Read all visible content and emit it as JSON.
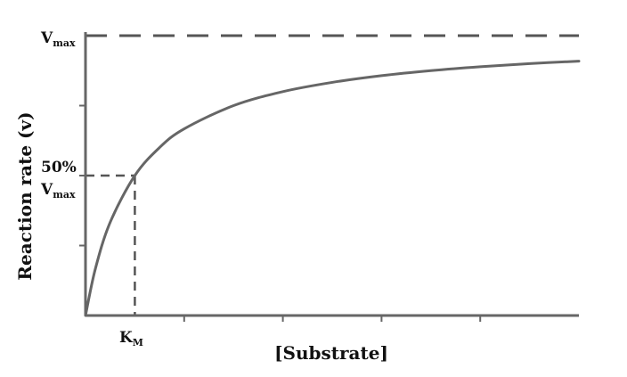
{
  "chart_data": {
    "type": "line",
    "title": "",
    "xlabel": "[Substrate]",
    "ylabel": "Reaction rate (v)",
    "xlim": [
      0,
      5
    ],
    "ylim": [
      0,
      1
    ],
    "grid": false,
    "legend": "none",
    "km": 0.5,
    "vmax": 1,
    "curve_color": "#666666",
    "axis_color": "#666666",
    "dash_color": "#555555",
    "y_annotations": {
      "vmax_label": {
        "main": "V",
        "sub": "max"
      },
      "half_label": {
        "line1": "50%",
        "main": "V",
        "sub": "max"
      }
    },
    "x_annotations": {
      "km_label": {
        "main": "K",
        "sub": "M"
      }
    },
    "series": [
      {
        "x": [
          0,
          0.1,
          0.25,
          0.5,
          0.75,
          1,
          1.5,
          2,
          2.5,
          3,
          3.5,
          4,
          4.5,
          5
        ],
        "y": [
          0,
          0.167,
          0.333,
          0.5,
          0.6,
          0.667,
          0.75,
          0.8,
          0.833,
          0.857,
          0.875,
          0.889,
          0.9,
          0.909
        ]
      }
    ]
  }
}
